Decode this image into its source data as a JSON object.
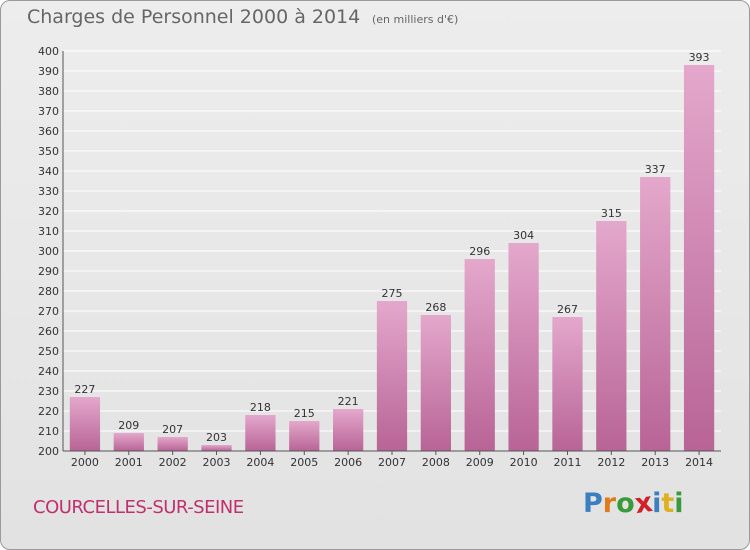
{
  "chart_title": "Charges de Personnel 2000 à 2014",
  "chart_subtitle": "(en milliers d'€)",
  "commune": "COURCELLES-SUR-SEINE",
  "brand": {
    "text": "Proxiti",
    "letters": [
      {
        "ch": "P",
        "color": "#3a7fc1"
      },
      {
        "ch": "r",
        "color": "#e07b1a"
      },
      {
        "ch": "o",
        "color": "#3a9a3a"
      },
      {
        "ch": "x",
        "color": "#d0202a"
      },
      {
        "ch": "i",
        "color": "#3a7fc1"
      },
      {
        "ch": "t",
        "color": "#e0b020"
      },
      {
        "ch": "i",
        "color": "#3a9a3a"
      }
    ]
  },
  "colors": {
    "bar_top": "#e4a8cc",
    "bar_bottom": "#b86496",
    "grid": "#ffffff",
    "axis_text": "#333333",
    "commune": "#c0306e"
  },
  "chart_data": {
    "type": "bar",
    "categories": [
      "2000",
      "2001",
      "2002",
      "2003",
      "2004",
      "2005",
      "2006",
      "2007",
      "2008",
      "2009",
      "2010",
      "2011",
      "2012",
      "2013",
      "2014"
    ],
    "values": [
      227,
      209,
      207,
      203,
      218,
      215,
      221,
      275,
      268,
      296,
      304,
      267,
      315,
      337,
      393
    ],
    "title": "Charges de Personnel 2000 à 2014",
    "subtitle": "(en milliers d'€)",
    "ylim": [
      200,
      400
    ],
    "yticks": [
      200,
      210,
      220,
      230,
      240,
      250,
      260,
      270,
      280,
      290,
      300,
      310,
      320,
      330,
      340,
      350,
      360,
      370,
      380,
      390,
      400
    ],
    "grid": true,
    "legend": "none"
  }
}
